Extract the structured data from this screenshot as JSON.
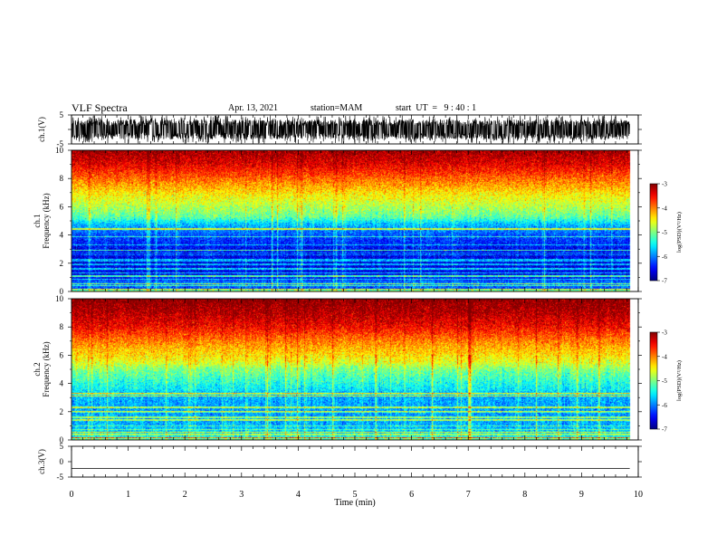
{
  "header": {
    "title": "VLF Spectra",
    "date": "Apr. 13, 2021",
    "station": "station=MAM",
    "start_time": "start  UT  =   9 : 40 : 1"
  },
  "chart_data": [
    {
      "type": "line",
      "panel": "ch1-waveform",
      "ylabel": "ch.1(V)",
      "ylim": [
        -5,
        5
      ],
      "y_ticks": [
        "5",
        "-5"
      ],
      "xlim": [
        0,
        10
      ],
      "trace": {
        "color": "#000000",
        "mean_v": 0,
        "amplitude_v": 4.2,
        "extent_min": 9.85
      }
    },
    {
      "type": "heatmap",
      "panel": "ch1-spectrogram",
      "ylabel": "ch.1\nFrequency (kHz)",
      "ylim": [
        0,
        10
      ],
      "y_ticks": [
        "0",
        "2",
        "4",
        "6",
        "8",
        "10"
      ],
      "xlim": [
        0,
        10
      ],
      "extent_min": 9.85,
      "colormap": "jet",
      "color_range": [
        -7,
        -3
      ],
      "level_by_freq_khz": [
        [
          0,
          -4.5
        ],
        [
          0.2,
          -6.2
        ],
        [
          0.6,
          -6.0
        ],
        [
          1,
          -6.5
        ],
        [
          2,
          -6.6
        ],
        [
          3,
          -6.5
        ],
        [
          4,
          -6.2
        ],
        [
          4.8,
          -5.7
        ],
        [
          5.3,
          -5.1
        ],
        [
          6,
          -4.8
        ],
        [
          7,
          -4.4
        ],
        [
          8,
          -3.9
        ],
        [
          9,
          -3.4
        ],
        [
          10,
          -3.1
        ]
      ],
      "colorbar": {
        "label": "log(PSD)(V²/Hz)",
        "ticks": [
          "-3",
          "-4",
          "-5",
          "-6",
          "-7"
        ]
      }
    },
    {
      "type": "heatmap",
      "panel": "ch2-spectrogram",
      "ylabel": "ch.2\nFrequency (kHz)",
      "ylim": [
        0,
        10
      ],
      "y_ticks": [
        "0",
        "2",
        "4",
        "6",
        "8",
        "10"
      ],
      "xlim": [
        0,
        10
      ],
      "extent_min": 9.85,
      "colormap": "jet",
      "color_range": [
        -7,
        -3
      ],
      "level_by_freq_khz": [
        [
          0,
          -5.0
        ],
        [
          0.3,
          -5.6
        ],
        [
          1,
          -5.8
        ],
        [
          2,
          -5.9
        ],
        [
          3,
          -5.8
        ],
        [
          4,
          -5.4
        ],
        [
          5,
          -5.0
        ],
        [
          5.5,
          -4.6
        ],
        [
          6,
          -4.4
        ],
        [
          7,
          -4.0
        ],
        [
          8,
          -3.5
        ],
        [
          9,
          -3.2
        ],
        [
          10,
          -3.0
        ]
      ],
      "colorbar": {
        "label": "log(PSD)(V²/Hz)",
        "ticks": [
          "-3",
          "-4",
          "-5",
          "-6",
          "-7"
        ]
      }
    },
    {
      "type": "line",
      "panel": "ch3-waveform",
      "ylabel": "ch.3(V)",
      "ylim": [
        -5,
        5
      ],
      "y_ticks": [
        "5",
        "0",
        "-5"
      ],
      "xlim": [
        0,
        10
      ],
      "xlabel": "Time (min)",
      "x_ticks": [
        "0",
        "1",
        "2",
        "3",
        "4",
        "5",
        "6",
        "7",
        "8",
        "9",
        "10"
      ],
      "trace": {
        "color": "#000000",
        "level_v": -2.2,
        "extent_min": 9.85
      }
    }
  ]
}
